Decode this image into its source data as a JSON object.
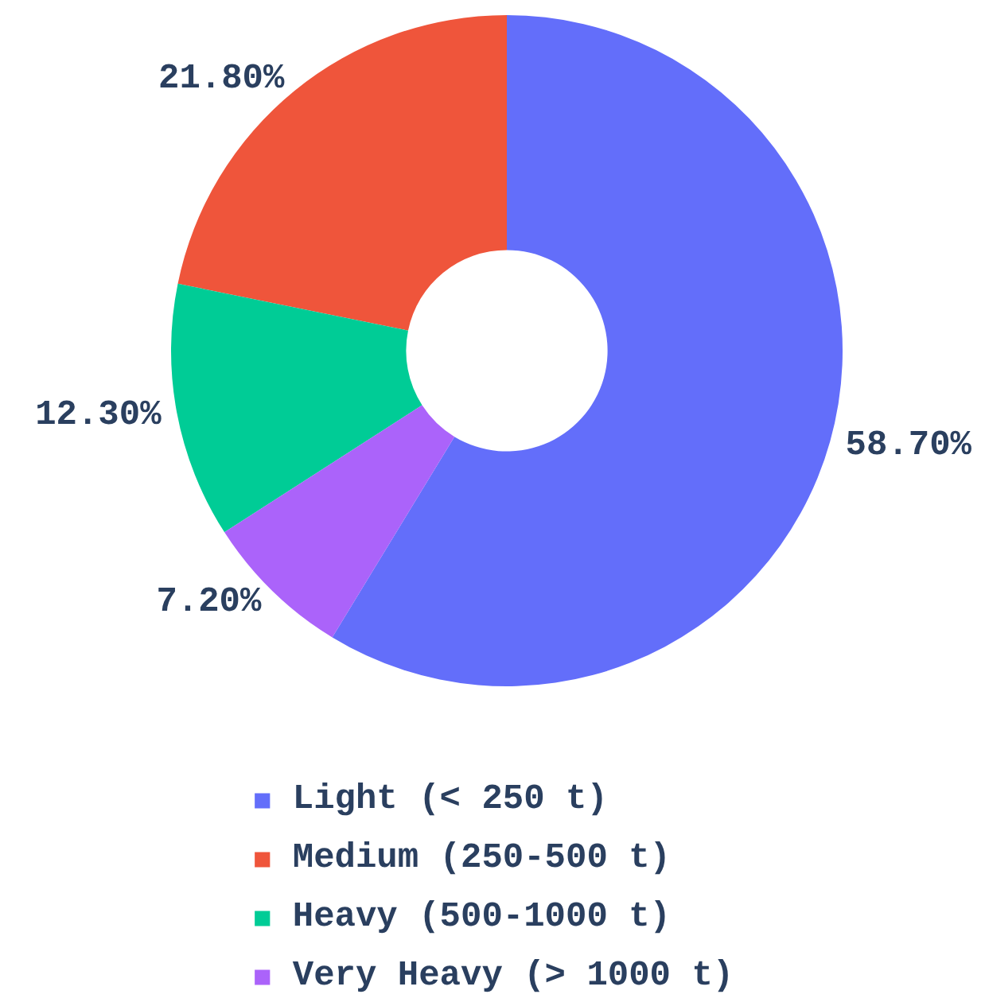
{
  "chart_data": {
    "type": "donut",
    "categories": [
      "Light (< 250 t)",
      "Medium (250-500 t)",
      "Heavy (500-1000 t)",
      "Very Heavy (> 1000 t)"
    ],
    "values": [
      58.7,
      21.8,
      12.3,
      7.2
    ],
    "colors": [
      "#636efa",
      "#ef553b",
      "#00cc96",
      "#ab63fa"
    ],
    "value_labels": [
      "58.70%",
      "21.80%",
      "12.30%",
      "7.20%"
    ],
    "legend": "bottom"
  }
}
